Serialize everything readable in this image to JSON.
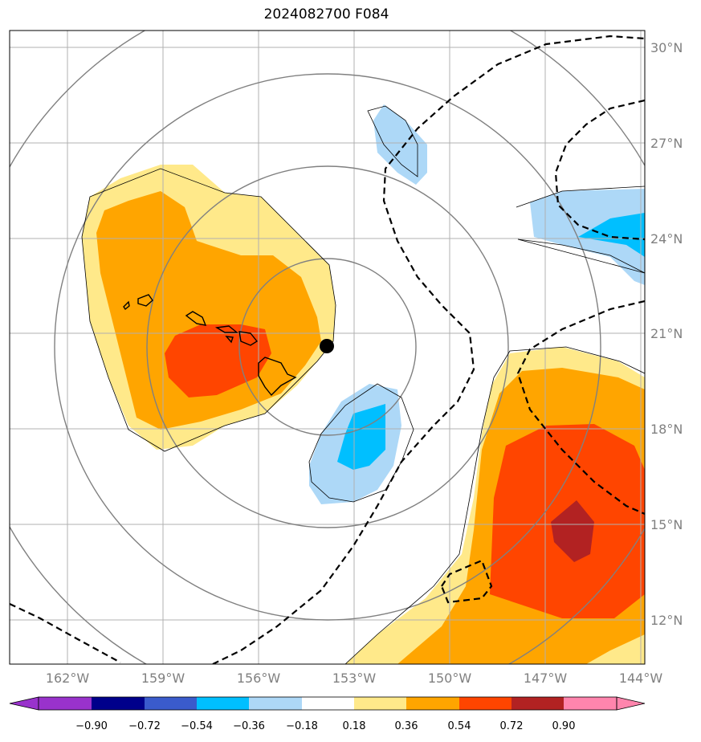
{
  "title": "2024082700 F084",
  "map": {
    "lon_ticks": [
      "162°W",
      "159°W",
      "156°W",
      "153°W",
      "150°W",
      "147°W",
      "144°W"
    ],
    "lat_ticks": [
      "30°N",
      "27°N",
      "24°N",
      "21°N",
      "18°N",
      "15°N",
      "12°N"
    ],
    "storm_center": {
      "lon": -153.7,
      "lat": 20.6
    }
  },
  "colorbar": {
    "labels": [
      "−0.90",
      "−0.72",
      "−0.54",
      "−0.36",
      "−0.18",
      "0.18",
      "0.36",
      "0.54",
      "0.72",
      "0.90"
    ],
    "colors": [
      "#9932cc",
      "#00008b",
      "#3a5bcc",
      "#00bfff",
      "#add8f7",
      "#ffffff",
      "#ffe98a",
      "#ffa500",
      "#ff4500",
      "#b22222",
      "#ff85ad"
    ]
  }
}
